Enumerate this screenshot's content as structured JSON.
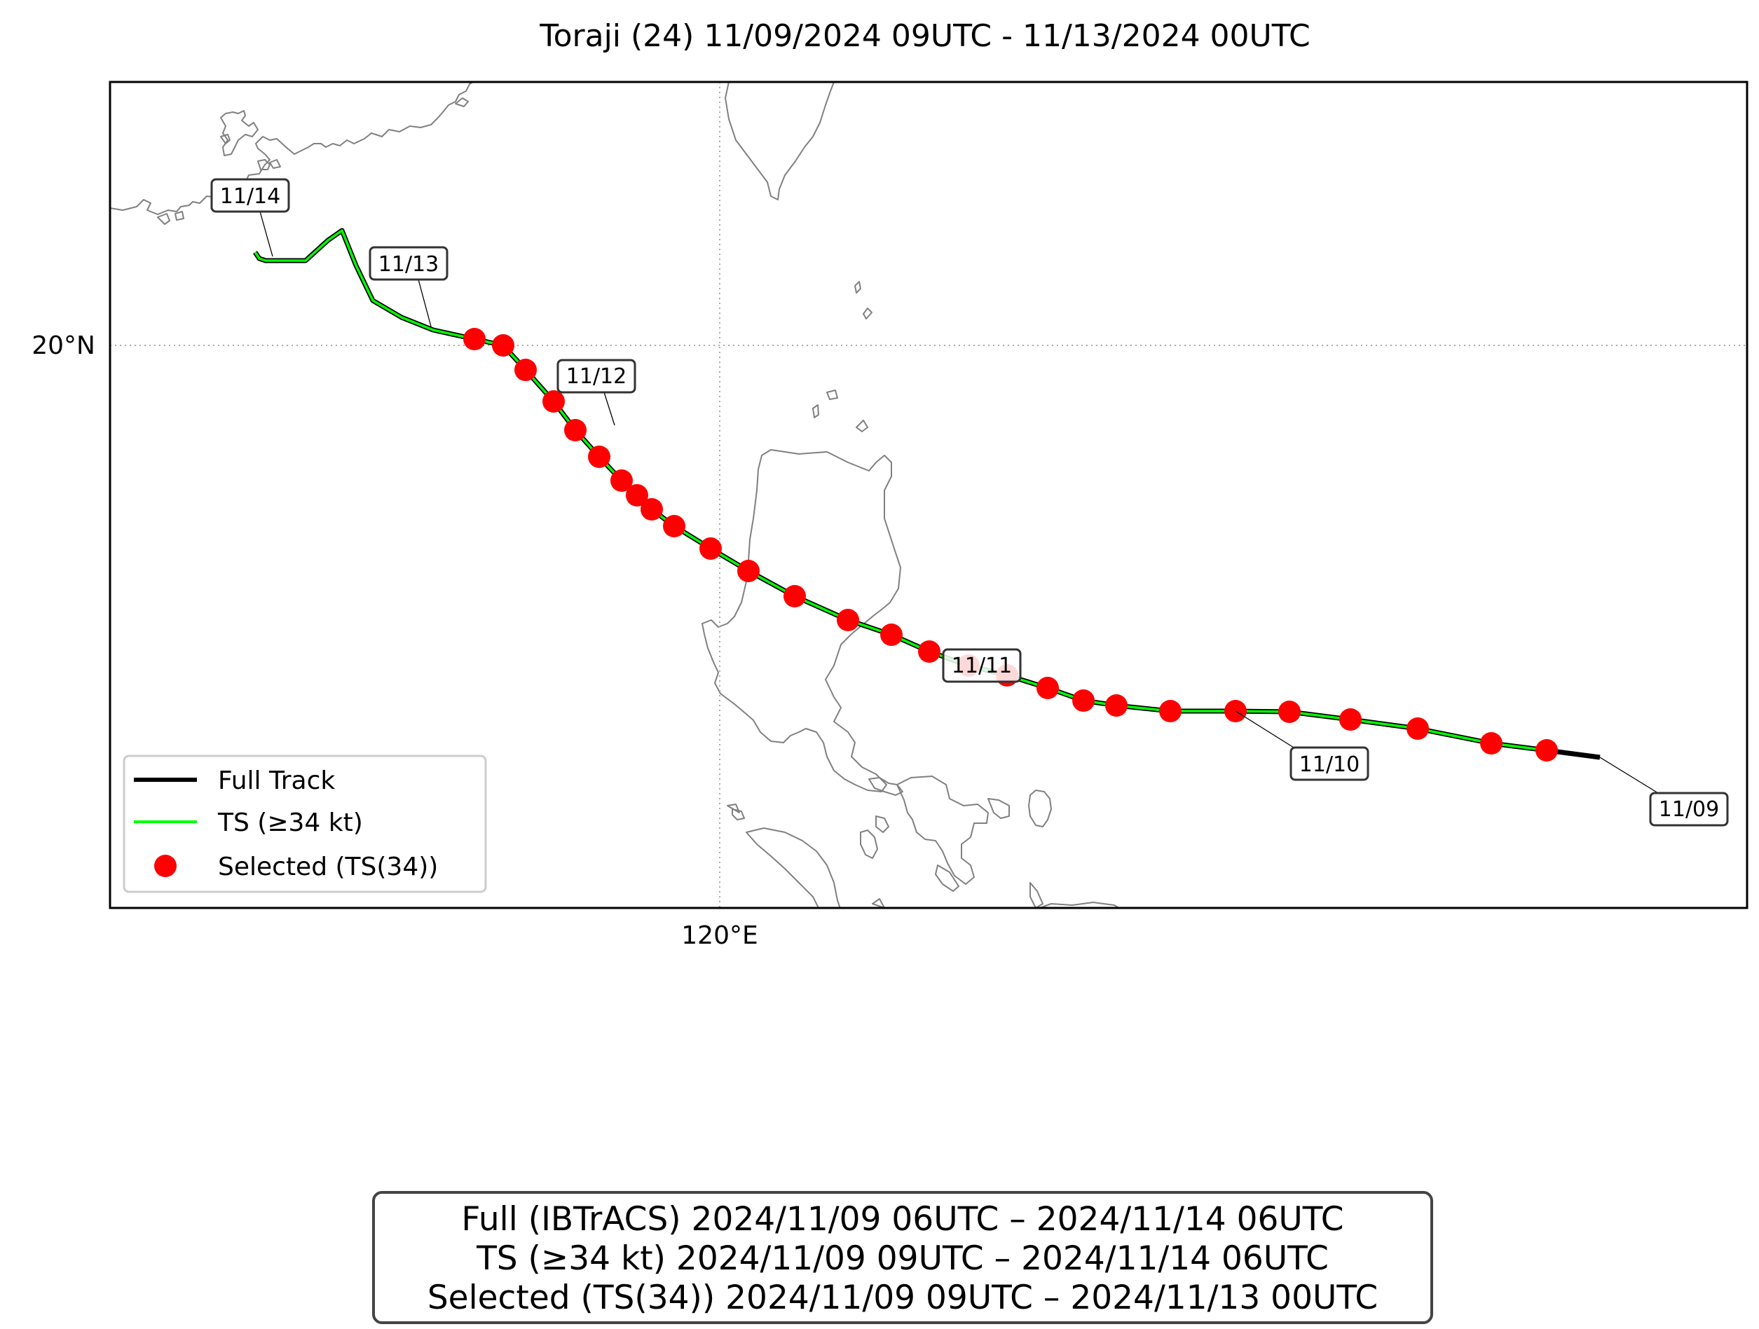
{
  "title": "Toraji (24)   11/09/2024 09UTC - 11/13/2024 00UTC",
  "axes": {
    "lon_label": "120°E",
    "lat_label": "20°N"
  },
  "legend": {
    "full": "Full Track",
    "ts": "TS (≥34 kt)",
    "selected": "Selected (TS(34))"
  },
  "colors": {
    "full_track": "#000000",
    "ts_track": "#00ff00",
    "selected": "#ff0000",
    "coast": "#808080"
  },
  "date_labels": [
    "11/09",
    "11/10",
    "11/11",
    "11/12",
    "11/13",
    "11/14"
  ],
  "summary": {
    "full": "Full (IBTrACS)   2024/11/09 06UTC – 2024/11/14 06UTC",
    "ts": "TS (≥34 kt)   2024/11/09 09UTC – 2024/11/14 06UTC",
    "selected": "Selected (TS(34))   2024/11/09 09UTC – 2024/11/13 00UTC"
  }
}
